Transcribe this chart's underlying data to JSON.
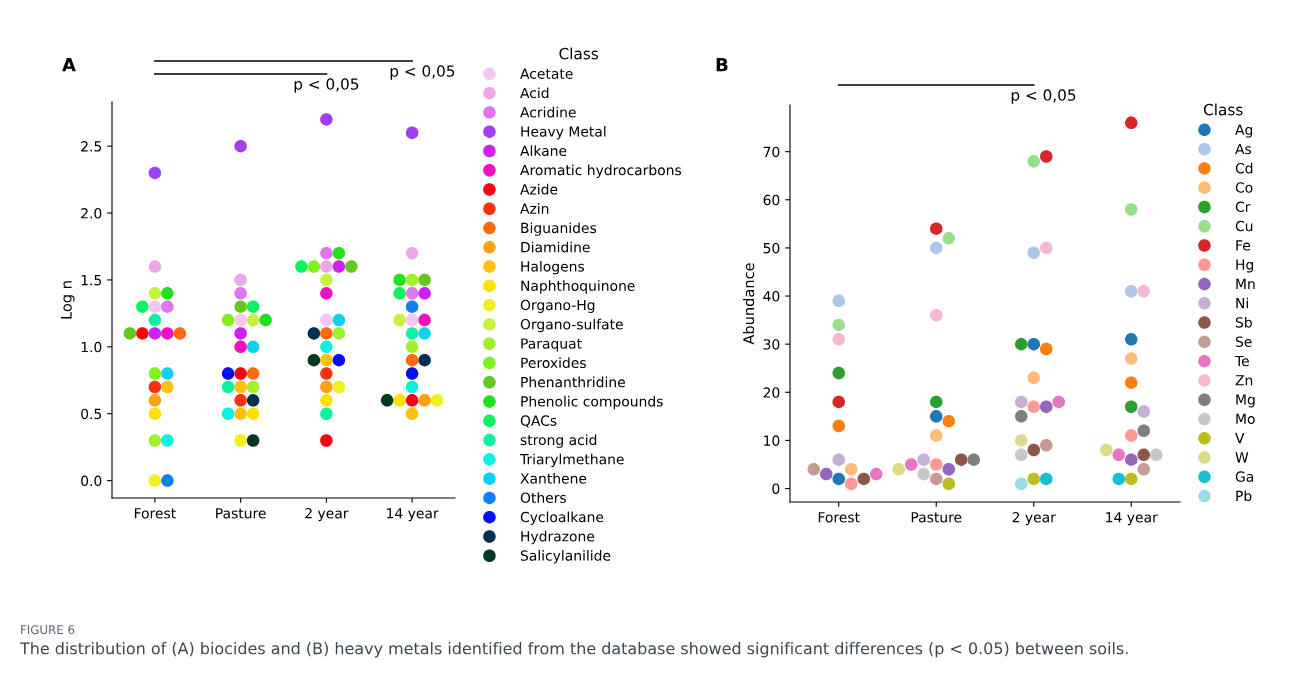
{
  "chart_data": [
    {
      "type": "scatter",
      "title": "A",
      "ylabel": "Log n",
      "legend_title": "Class",
      "legend": "right",
      "marker": "circle",
      "grid": false,
      "categories": [
        "Forest",
        "Pasture",
        "2 year",
        "14 year"
      ],
      "ylim": [
        -0.13,
        2.83
      ],
      "yticks": [
        {
          "value": 0,
          "label": "0.0"
        },
        {
          "value": 0.5,
          "label": "0.5"
        },
        {
          "value": 1,
          "label": "1.0"
        },
        {
          "value": 1.5,
          "label": "1.5"
        },
        {
          "value": 2,
          "label": "2.0"
        },
        {
          "value": 2.5,
          "label": "2.5"
        }
      ],
      "annotations": [
        "p < 0,05",
        "p < 0,05",
        "FIGURE 6",
        "The distribution of (A) biocides and (B) heavy metals identified from the database showed significant differences (p < 0.05) between soils."
      ],
      "series": [
        {
          "name": "Acetate",
          "color": "#f5c6ef",
          "x": [
            "Forest",
            "Pasture",
            "2 year",
            "14 year"
          ],
          "values": [
            1.3,
            1.2,
            1.2,
            1.2
          ]
        },
        {
          "name": "Acid",
          "color": "#eea6e8",
          "x": [
            "Forest",
            "Pasture",
            "2 year",
            "14 year"
          ],
          "values": [
            1.6,
            1.5,
            1.6,
            1.7
          ]
        },
        {
          "name": "Acridine",
          "color": "#dd77ea",
          "x": [
            "Forest",
            "Pasture",
            "2 year",
            "14 year"
          ],
          "values": [
            1.3,
            1.4,
            1.7,
            1.4
          ]
        },
        {
          "name": "Heavy Metal",
          "color": "#a040f0",
          "x": [
            "Forest",
            "Pasture",
            "2 year",
            "14 year"
          ],
          "values": [
            2.3,
            2.5,
            2.7,
            2.6
          ]
        },
        {
          "name": "Alkane",
          "color": "#d020f0",
          "x": [
            "Forest",
            "Pasture",
            "2 year",
            "14 year"
          ],
          "values": [
            1.1,
            1.1,
            1.6,
            1.4
          ]
        },
        {
          "name": "Aromatic hydrocarbons",
          "color": "#f010c0",
          "x": [
            "Forest",
            "Pasture",
            "2 year",
            "14 year"
          ],
          "values": [
            1.1,
            1.0,
            1.4,
            1.2
          ]
        },
        {
          "name": "Azide",
          "color": "#ff0010",
          "x": [
            "Forest",
            "Pasture",
            "2 year",
            "14 year"
          ],
          "values": [
            1.1,
            0.8,
            0.3,
            0.6
          ]
        },
        {
          "name": "Azin",
          "color": "#ff3010",
          "x": [
            "Forest",
            "Pasture",
            "2 year"
          ],
          "values": [
            0.7,
            0.6,
            0.8
          ]
        },
        {
          "name": "Biguanides",
          "color": "#ff6a10",
          "x": [
            "Forest",
            "Pasture",
            "2 year",
            "14 year"
          ],
          "values": [
            1.1,
            0.8,
            1.1,
            0.9
          ]
        },
        {
          "name": "Diamidine",
          "color": "#ffa010",
          "x": [
            "Forest",
            "2 year",
            "14 year"
          ],
          "values": [
            0.6,
            0.7,
            0.6
          ]
        },
        {
          "name": "Halogens",
          "color": "#ffc010",
          "x": [
            "Forest",
            "Pasture",
            "Pasture",
            "2 year",
            "14 year"
          ],
          "values": [
            0.7,
            0.7,
            0.5,
            0.9,
            0.5
          ]
        },
        {
          "name": "Naphthoquinone",
          "color": "#ffe000",
          "x": [
            "Forest",
            "Pasture",
            "2 year",
            "14 year"
          ],
          "values": [
            0.5,
            0.5,
            0.6,
            0.6
          ]
        },
        {
          "name": "Organo-Hg",
          "color": "#f0f020",
          "x": [
            "Forest",
            "Pasture",
            "2 year",
            "14 year"
          ],
          "values": [
            0.0,
            0.3,
            0.7,
            0.6
          ]
        },
        {
          "name": "Organo-sulfate",
          "color": "#c8f040",
          "x": [
            "Forest",
            "Pasture",
            "2 year",
            "14 year"
          ],
          "values": [
            1.4,
            1.2,
            1.5,
            1.2
          ]
        },
        {
          "name": "Paraquat",
          "color": "#a0f030",
          "x": [
            "Forest",
            "Pasture",
            "2 year",
            "14 year",
            "14 year"
          ],
          "values": [
            0.3,
            0.7,
            1.1,
            1.0,
            1.5
          ]
        },
        {
          "name": "Peroxides",
          "color": "#80f020",
          "x": [
            "Forest",
            "Pasture",
            "2 year"
          ],
          "values": [
            0.8,
            1.2,
            1.6
          ]
        },
        {
          "name": "Phenanthridine",
          "color": "#60c820",
          "x": [
            "Forest",
            "Pasture",
            "2 year",
            "14 year"
          ],
          "values": [
            1.1,
            1.3,
            1.6,
            1.5
          ]
        },
        {
          "name": "Phenolic compounds",
          "color": "#20e020",
          "x": [
            "Forest",
            "Pasture",
            "2 year",
            "14 year"
          ],
          "values": [
            1.4,
            1.2,
            1.7,
            1.5
          ]
        },
        {
          "name": "QACs",
          "color": "#10f060",
          "x": [
            "Forest",
            "Pasture",
            "2 year",
            "14 year"
          ],
          "values": [
            1.3,
            1.3,
            1.6,
            1.4
          ]
        },
        {
          "name": "strong acid",
          "color": "#10f0a0",
          "x": [
            "Forest",
            "Pasture",
            "2 year",
            "14 year"
          ],
          "values": [
            1.2,
            0.7,
            0.5,
            1.1
          ]
        },
        {
          "name": "Triarylmethane",
          "color": "#10f0e0",
          "x": [
            "Forest",
            "Pasture",
            "2 year",
            "14 year"
          ],
          "values": [
            0.3,
            0.5,
            1.0,
            0.7
          ]
        },
        {
          "name": "Xanthene",
          "color": "#10d0f0",
          "x": [
            "Forest",
            "Pasture",
            "2 year",
            "14 year"
          ],
          "values": [
            0.8,
            1.0,
            1.2,
            1.1
          ]
        },
        {
          "name": "Others",
          "color": "#1080f0",
          "x": [
            "Forest",
            "14 year"
          ],
          "values": [
            0.0,
            1.3
          ]
        },
        {
          "name": "Cycloalkane",
          "color": "#0010f0",
          "x": [
            "Pasture",
            "2 year",
            "14 year"
          ],
          "values": [
            0.8,
            0.9,
            0.8
          ]
        },
        {
          "name": "Hydrazone",
          "color": "#003050",
          "x": [
            "Pasture",
            "2 year",
            "14 year"
          ],
          "values": [
            0.6,
            1.1,
            0.9
          ]
        },
        {
          "name": "Salicylanilide",
          "color": "#003820",
          "x": [
            "Pasture",
            "2 year",
            "14 year"
          ],
          "values": [
            0.3,
            0.9,
            0.6
          ]
        }
      ]
    },
    {
      "type": "scatter",
      "title": "B",
      "ylabel": "Abundance",
      "legend_title": "Class",
      "legend": "right",
      "marker": "circle",
      "grid": false,
      "categories": [
        "Forest",
        "Pasture",
        "2 year",
        "14 year"
      ],
      "ylim": [
        -2.8,
        79.7
      ],
      "yticks": [
        0,
        10,
        20,
        30,
        40,
        50,
        60,
        70
      ],
      "annotations": [
        "p < 0,05"
      ],
      "series": [
        {
          "name": "Ag",
          "color": "#1f77b4",
          "x": [
            "Forest",
            "Pasture",
            "2 year",
            "14 year"
          ],
          "values": [
            2,
            15,
            30,
            31
          ]
        },
        {
          "name": "As",
          "color": "#aec7e8",
          "x": [
            "Forest",
            "Pasture",
            "2 year",
            "14 year"
          ],
          "values": [
            39,
            50,
            49,
            41
          ]
        },
        {
          "name": "Cd",
          "color": "#ff7f0e",
          "x": [
            "Forest",
            "Pasture",
            "2 year",
            "14 year"
          ],
          "values": [
            13,
            14,
            29,
            22
          ]
        },
        {
          "name": "Co",
          "color": "#ffbb78",
          "x": [
            "Forest",
            "Pasture",
            "2 year",
            "14 year"
          ],
          "values": [
            4,
            11,
            23,
            27
          ]
        },
        {
          "name": "Cr",
          "color": "#2ca02c",
          "x": [
            "Forest",
            "Pasture",
            "2 year",
            "14 year"
          ],
          "values": [
            24,
            18,
            30,
            17
          ]
        },
        {
          "name": "Cu",
          "color": "#98df8a",
          "x": [
            "Forest",
            "Pasture",
            "2 year",
            "14 year"
          ],
          "values": [
            34,
            52,
            68,
            58
          ]
        },
        {
          "name": "Fe",
          "color": "#d62728",
          "x": [
            "Forest",
            "Pasture",
            "2 year",
            "14 year"
          ],
          "values": [
            18,
            54,
            69,
            76
          ]
        },
        {
          "name": "Hg",
          "color": "#ff9896",
          "x": [
            "Forest",
            "Pasture",
            "2 year",
            "14 year"
          ],
          "values": [
            1,
            5,
            17,
            11
          ]
        },
        {
          "name": "Mn",
          "color": "#9467bd",
          "x": [
            "Forest",
            "Pasture",
            "2 year",
            "14 year"
          ],
          "values": [
            3,
            4,
            17,
            6
          ]
        },
        {
          "name": "Ni",
          "color": "#c5b0d5",
          "x": [
            "Forest",
            "Pasture",
            "2 year",
            "14 year"
          ],
          "values": [
            6,
            6,
            18,
            16
          ]
        },
        {
          "name": "Sb",
          "color": "#8c564b",
          "x": [
            "Forest",
            "Pasture",
            "2 year",
            "14 year"
          ],
          "values": [
            2,
            6,
            8,
            7
          ]
        },
        {
          "name": "Se",
          "color": "#c49c94",
          "x": [
            "Forest",
            "Pasture",
            "2 year",
            "14 year"
          ],
          "values": [
            4,
            2,
            9,
            4
          ]
        },
        {
          "name": "Te",
          "color": "#e377c2",
          "x": [
            "Forest",
            "Pasture",
            "2 year",
            "14 year"
          ],
          "values": [
            3,
            5,
            18,
            7
          ]
        },
        {
          "name": "Zn",
          "color": "#f7b6d2",
          "x": [
            "Forest",
            "Pasture",
            "2 year",
            "14 year"
          ],
          "values": [
            31,
            36,
            50,
            41
          ]
        },
        {
          "name": "Mg",
          "color": "#7f7f7f",
          "x": [
            "Pasture",
            "2 year",
            "14 year"
          ],
          "values": [
            6,
            15,
            12
          ]
        },
        {
          "name": "Mo",
          "color": "#c7c7c7",
          "x": [
            "Pasture",
            "2 year",
            "14 year"
          ],
          "values": [
            3,
            7,
            7
          ]
        },
        {
          "name": "V",
          "color": "#bcbd22",
          "x": [
            "Pasture",
            "2 year",
            "14 year"
          ],
          "values": [
            1,
            2,
            2
          ]
        },
        {
          "name": "W",
          "color": "#dbdb8d",
          "x": [
            "Pasture",
            "2 year",
            "14 year"
          ],
          "values": [
            4,
            10,
            8
          ]
        },
        {
          "name": "Ga",
          "color": "#17becf",
          "x": [
            "2 year",
            "14 year"
          ],
          "values": [
            2,
            2
          ]
        },
        {
          "name": "Pb",
          "color": "#9edae5",
          "x": [
            "2 year"
          ],
          "values": [
            1
          ]
        }
      ]
    }
  ]
}
